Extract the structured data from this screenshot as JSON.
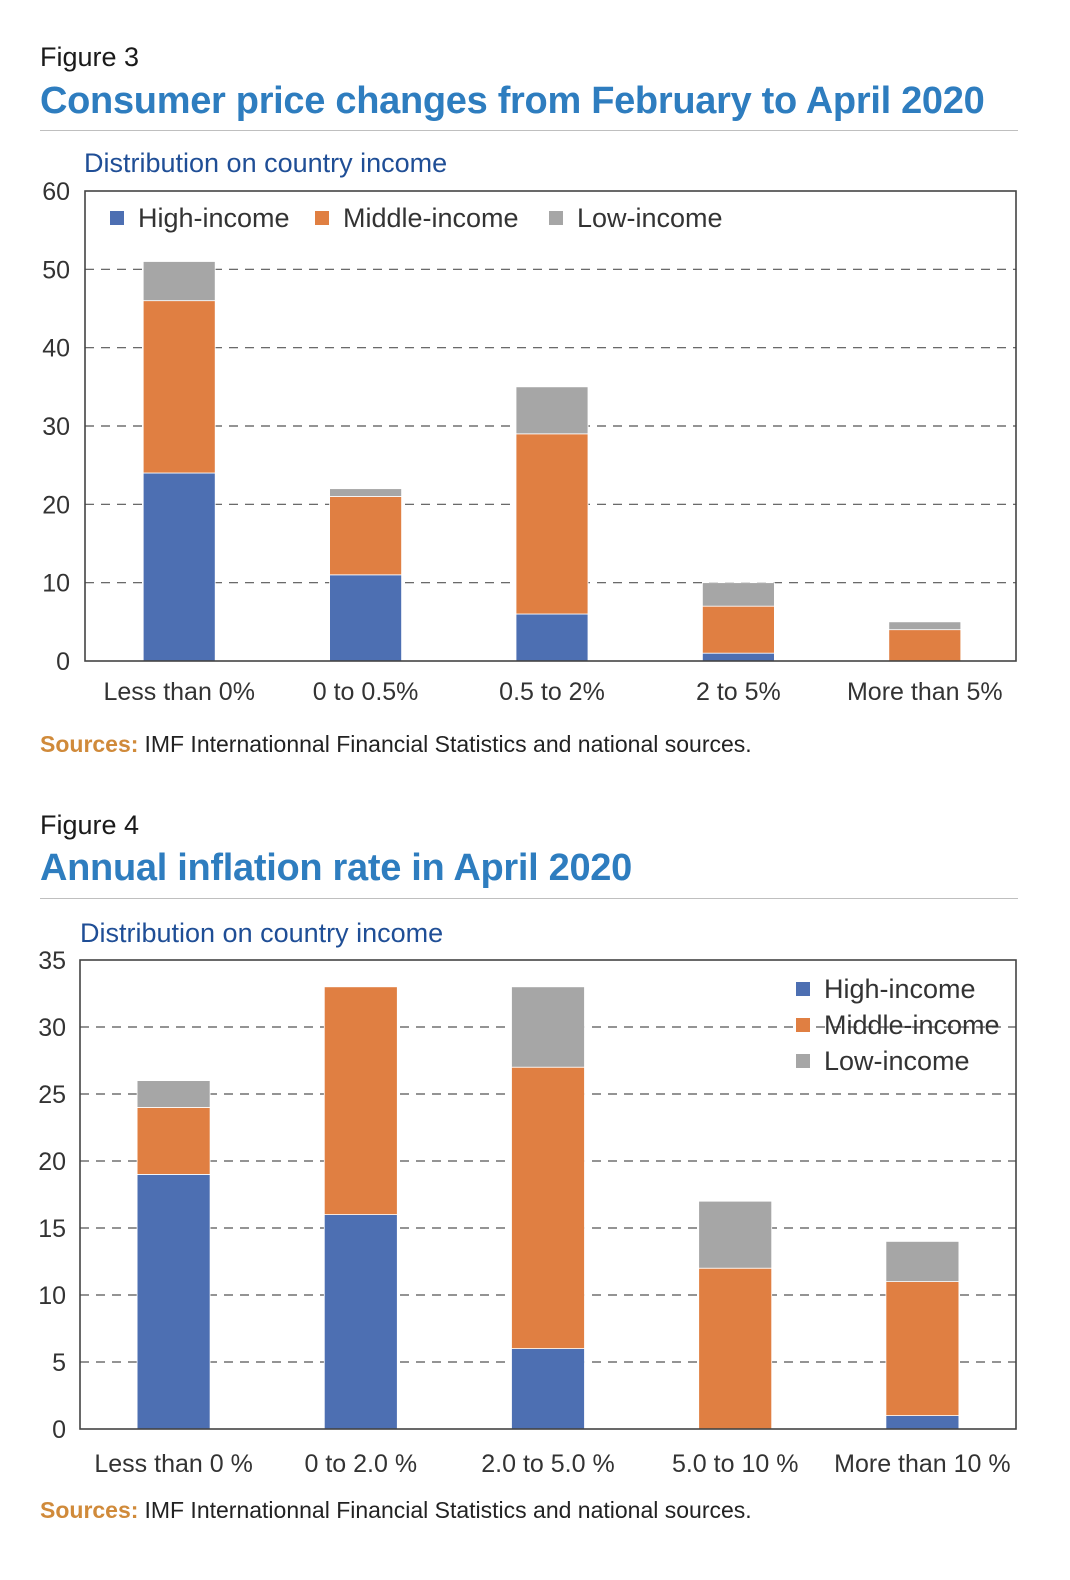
{
  "colors": {
    "high_income": "#4d6fb2",
    "middle_income": "#e07f42",
    "low_income": "#a6a6a6",
    "title": "#2e7dbf",
    "subtitle": "#1f4e96",
    "sources_label": "#d08a3a"
  },
  "chart_data": [
    {
      "type": "bar",
      "stacked": true,
      "figure_label": "Figure 3",
      "title": "Consumer price changes from February to April 2020",
      "subtitle": "Distribution on country income",
      "categories": [
        "Less than 0%",
        "0 to 0.5%",
        "0.5 to 2%",
        "2 to 5%",
        "More than 5%"
      ],
      "series": [
        {
          "name": "High-income",
          "values": [
            24,
            11,
            6,
            1,
            0
          ]
        },
        {
          "name": "Middle-income",
          "values": [
            22,
            10,
            23,
            6,
            4
          ]
        },
        {
          "name": "Low-income",
          "values": [
            5,
            1,
            6,
            3,
            1
          ]
        }
      ],
      "yticks": [
        0,
        10,
        20,
        30,
        40,
        50,
        60
      ],
      "ylim": [
        0,
        60
      ],
      "grid": true,
      "legend_position": "top-left",
      "sources_label": "Sources:",
      "sources_text": "IMF Internationnal Financial Statistics and national sources."
    },
    {
      "type": "bar",
      "stacked": true,
      "figure_label": "Figure 4",
      "title": "Annual inflation rate in April 2020",
      "subtitle": "Distribution on country income",
      "categories": [
        "Less than 0 %",
        "0 to 2.0 %",
        "2.0 to 5.0 %",
        "5.0 to 10 %",
        "More than 10 %"
      ],
      "series": [
        {
          "name": "High-income",
          "values": [
            19,
            16,
            6,
            0,
            1
          ]
        },
        {
          "name": "Middle-income",
          "values": [
            5,
            17,
            21,
            12,
            10
          ]
        },
        {
          "name": "Low-income",
          "values": [
            2,
            0,
            6,
            5,
            3
          ]
        }
      ],
      "yticks": [
        0,
        5,
        10,
        15,
        20,
        25,
        30,
        35
      ],
      "ylim": [
        0,
        35
      ],
      "grid": true,
      "legend_position": "top-right",
      "sources_label": "Sources:",
      "sources_text": "IMF Internationnal Financial Statistics and national sources."
    }
  ]
}
